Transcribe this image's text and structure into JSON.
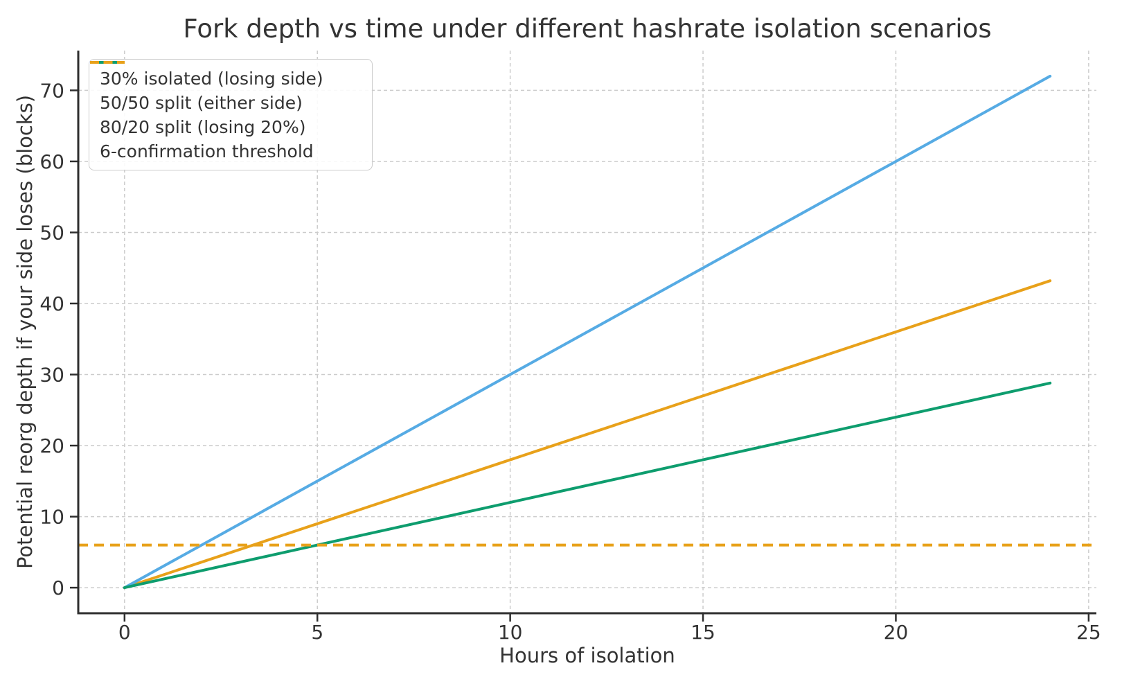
{
  "chart_data": {
    "type": "line",
    "title": "Fork depth vs time under different hashrate isolation scenarios",
    "xlabel": "Hours of isolation",
    "ylabel": "Potential reorg depth if your side loses (blocks)",
    "xlim": [
      -1.2,
      25.2
    ],
    "ylim": [
      -3.6,
      75.6
    ],
    "x_ticks": [
      0,
      5,
      10,
      15,
      20,
      25
    ],
    "y_ticks": [
      0,
      10,
      20,
      30,
      40,
      50,
      60,
      70
    ],
    "grid": true,
    "grid_color": "#cccccc",
    "axis_color": "#2e2e2e",
    "text_color": "#333333",
    "legend_position": "upper-left",
    "series": [
      {
        "name": "30% isolated (losing side)",
        "color": "#E8A11A",
        "dash": "solid",
        "x": [
          0,
          5,
          10,
          15,
          20,
          24
        ],
        "y": [
          0,
          9,
          18,
          27,
          36,
          43.2
        ]
      },
      {
        "name": "50/50 split (either side)",
        "color": "#56ABE4",
        "dash": "solid",
        "x": [
          0,
          5,
          10,
          15,
          20,
          24
        ],
        "y": [
          0,
          15,
          30,
          45,
          60,
          72
        ]
      },
      {
        "name": "80/20 split (losing 20%)",
        "color": "#0E9D6E",
        "dash": "solid",
        "x": [
          0,
          5,
          10,
          15,
          20,
          24
        ],
        "y": [
          0,
          6,
          12,
          18,
          24,
          28.8
        ]
      },
      {
        "name": "6-confirmation threshold",
        "color": "#E8A11A",
        "dash": "dashed",
        "hline": 6
      }
    ]
  }
}
